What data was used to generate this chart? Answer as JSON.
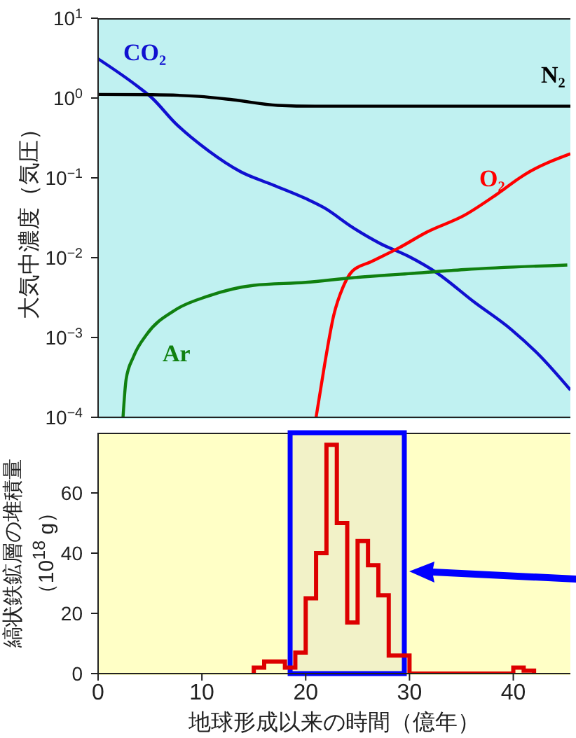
{
  "chart_data": [
    {
      "type": "line",
      "ylabel": "大気中濃度（気圧）",
      "log": "y",
      "xlim": [
        0,
        45.5
      ],
      "xticks": [
        0,
        10,
        20,
        30,
        40
      ],
      "ylim": [
        0.0001,
        10
      ],
      "yticks": [
        {
          "value": 10,
          "label": "10$^{1}$"
        },
        {
          "value": 1,
          "label": "10$^{0}$"
        },
        {
          "value": 0.1,
          "label": "10$^{−1}$"
        },
        {
          "value": 0.01,
          "label": "10$^{−2}$"
        },
        {
          "value": 0.001,
          "label": "10$^{−3}$"
        },
        {
          "value": 0.0001,
          "label": "10$^{−4}$"
        }
      ],
      "tick_labels": "y",
      "series": [
        {
          "name": "CO₂",
          "color": "#1010d0",
          "x": [
            0,
            3.8,
            5.2,
            7.4,
            10.6,
            13.7,
            16.9,
            20,
            21.8,
            24.5,
            27.2,
            29.9,
            32.6,
            36.2,
            39.8,
            42.5,
            45.5
          ],
          "values": [
            3.1,
            1.4,
            1.0,
            0.49,
            0.22,
            0.12,
            0.081,
            0.055,
            0.042,
            0.024,
            0.015,
            0.0104,
            0.0065,
            0.0028,
            0.00126,
            0.0006,
            0.00022
          ]
        },
        {
          "name": "N₂",
          "color": "#000000",
          "x": [
            0,
            5.2,
            9.7,
            13,
            17.3,
            20.9,
            30,
            40,
            45.5
          ],
          "values": [
            1.11,
            1.1,
            1.05,
            0.95,
            0.81,
            0.79,
            0.79,
            0.79,
            0.79
          ]
        },
        {
          "name": "O₂",
          "color": "#ff0000",
          "x": [
            21,
            21.8,
            22.7,
            23.6,
            24.5,
            26.3,
            29,
            31.7,
            35.3,
            38.4,
            41.1,
            45.5
          ],
          "values": [
            0.0001,
            0.00044,
            0.0019,
            0.0043,
            0.0068,
            0.0089,
            0.0133,
            0.021,
            0.034,
            0.062,
            0.11,
            0.2
          ]
        },
        {
          "name": "Ar",
          "color": "#108010",
          "x": [
            2.4,
            2.7,
            3.4,
            4.7,
            7.4,
            10.6,
            15,
            20,
            24.5,
            29.9,
            35.3,
            45.2
          ],
          "values": [
            0.0001,
            0.0003,
            0.00057,
            0.0011,
            0.0022,
            0.0033,
            0.0045,
            0.0049,
            0.0056,
            0.0063,
            0.0071,
            0.0081
          ]
        }
      ]
    },
    {
      "type": "histogram",
      "ylabel": "縞状鉄鉱層の堆積量（10$^{18}$ g）",
      "xlabel": "地球形成以来の時間（億年）",
      "xlim": [
        0,
        45.5
      ],
      "xticks": [
        0,
        10,
        20,
        30,
        40
      ],
      "ylim": [
        0,
        80
      ],
      "yticks": [
        0,
        20,
        40,
        60
      ],
      "color": "#dd0000",
      "bins": [
        15,
        16,
        17,
        18,
        19,
        20,
        21,
        22,
        23,
        24,
        25,
        26,
        27,
        28,
        29,
        30,
        31,
        32,
        33,
        34,
        35,
        36,
        37,
        38,
        39,
        40,
        41,
        42
      ],
      "values": [
        2,
        4,
        4,
        2,
        7,
        25,
        40,
        76,
        50,
        17,
        44,
        36,
        26,
        6,
        6,
        0,
        0,
        0,
        0,
        0,
        0,
        0,
        0,
        0,
        0,
        2,
        1
      ],
      "bands": [
        {
          "axis": "x",
          "from": 18.5,
          "to": 29.5,
          "color": "#0000ff"
        }
      ]
    }
  ]
}
